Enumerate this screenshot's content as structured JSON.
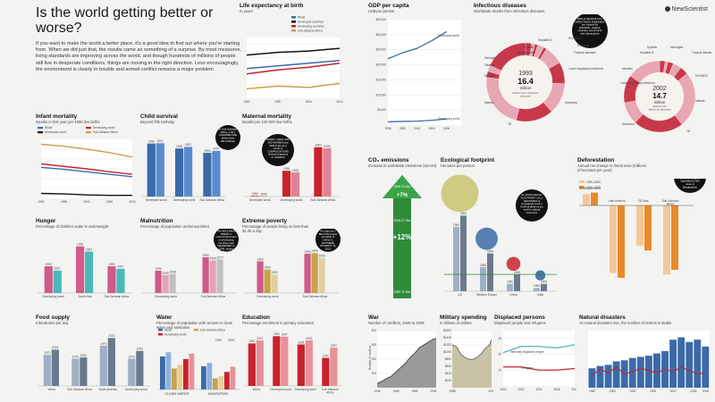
{
  "brand": "NewScientist",
  "headline": "Is the world getting better or worse?",
  "intro": "If you want to make the world a better place, it's a good idea to find out where you're starting from. When we did just that, the results came as something of a surprise. By most measures, living standards are improving across the world, and though hundreds of millions of people still live in desperate conditions, things are moving in the right direction. Less encouragingly, the environment is clearly in trouble and armed conflict remains a major problem",
  "colors": {
    "world": "#3b6aa8",
    "developed": "#111111",
    "developing": "#c8222e",
    "ssa": "#c8a24a",
    "teal": "#4bb8b8",
    "pink": "#d05a8a",
    "grey": "#7d7d7d",
    "green": "#2e8b3a"
  },
  "life": {
    "title": "Life expectancy at birth",
    "subtitle": "In years",
    "legend": [
      "World",
      "Developed countries",
      "Developing countries",
      "Sub-Saharan Africa"
    ],
    "chart_data": {
      "type": "line",
      "x": [
        1980,
        1990,
        2000,
        2010
      ],
      "xlim": [
        1980,
        2010
      ],
      "ylim": [
        40,
        85
      ],
      "series": [
        {
          "name": "World",
          "values": [
            62,
            64,
            66,
            68
          ]
        },
        {
          "name": "Developed countries",
          "values": [
            72,
            74,
            75,
            77
          ]
        },
        {
          "name": "Developing countries",
          "values": [
            58,
            61,
            63,
            66
          ]
        },
        {
          "name": "Sub-Saharan Africa",
          "values": [
            47,
            49,
            48,
            51
          ]
        }
      ]
    }
  },
  "gdp": {
    "title": "GDP per capita",
    "subtitle": "US$ per person",
    "label_developed": "Developed world",
    "label_developing": "Developing world",
    "chart_data": {
      "type": "line",
      "x": [
        1998,
        2000,
        2002,
        2004,
        2006
      ],
      "xlim": [
        1998,
        2008
      ],
      "ylim": [
        0,
        35000
      ],
      "yticks": [
        5000,
        10000,
        15000,
        20000,
        25000,
        30000,
        35000
      ],
      "series": [
        {
          "name": "Developed world",
          "values": [
            22000,
            24000,
            25500,
            28000,
            31000
          ]
        },
        {
          "name": "Developing world",
          "values": [
            1100,
            1200,
            1300,
            1600,
            2000
          ]
        }
      ]
    }
  },
  "infectious": {
    "title": "Infectious diseases",
    "subtitle": "Worldwide deaths from infectious diseases",
    "note": "80% of DEATHS from INFECTIOUS DISEASES are caused by HIV/AIDS, malaria, measles, pneumonia and tuberculosis",
    "y1993": {
      "year": "1993",
      "value": "16.4",
      "unit": "million",
      "desc": "deaths from infectious diseases"
    },
    "y2002": {
      "year": "2002",
      "value": "14.7",
      "unit": "million",
      "desc": "deaths from infectious diseases"
    },
    "labels_1993": [
      "Hepatitis B",
      "Syphilis",
      "Leishmaniasis",
      "Meningitis",
      "Tetanus",
      "Measles",
      "Malaria",
      "TB",
      "Diarrhoea",
      "Lower respiratory infections",
      "Tropical diseases",
      "Pertussis",
      "HIV/AIDS"
    ],
    "labels_2002": [
      "Hepatitis B",
      "Syphilis",
      "Meningitis",
      "Tropical diseases",
      "Measles",
      "Lower respiratory infections",
      "HIV/AIDS",
      "Malaria",
      "TB",
      "Diarrhoea"
    ]
  },
  "infant": {
    "title": "Infant mortality",
    "subtitle": "Deaths in first year per 1000 live births",
    "legend": [
      "World",
      "Developing world",
      "Developed world",
      "Sub-Saharan Africa"
    ],
    "chart_data": {
      "type": "line",
      "x": [
        1990,
        1995,
        2000,
        2005,
        2010
      ],
      "xlim": [
        1990,
        2010
      ],
      "ylim": [
        0,
        120
      ],
      "series": [
        {
          "name": "World",
          "values": [
            63,
            59,
            54,
            49,
            44
          ]
        },
        {
          "name": "Developing world",
          "values": [
            70,
            65,
            60,
            54,
            49
          ]
        },
        {
          "name": "Developed world",
          "values": [
            10,
            9,
            7,
            6,
            6
          ]
        },
        {
          "name": "Sub-Saharan Africa",
          "values": [
            110,
            106,
            100,
            93,
            84
          ]
        }
      ]
    }
  },
  "child": {
    "title": "Child survival",
    "subtitle": "Beyond fifth birthday",
    "callout": "In Sub-Saharan Africa, 1 IN 7 CHILDREN DIE before their fifth birthday",
    "cats": [
      "Developed world",
      "Developing world",
      "Sub-Saharan Africa"
    ],
    "years": [
      "1990",
      "2007"
    ],
    "chart_data": {
      "type": "bar",
      "categories": [
        "Developed world",
        "Developing world",
        "Sub-Saharan Africa"
      ],
      "ylim": [
        0,
        100
      ],
      "series": [
        {
          "name": "1990",
          "values": [
            98.8,
            89.7,
            81.6
          ]
        },
        {
          "name": "2007",
          "values": [
            99.4,
            92.6,
            85.1
          ]
        }
      ]
    }
  },
  "maternal": {
    "title": "Maternal mortality",
    "subtitle": "Deaths per 100 000 live births",
    "callout": "EVERY YEAR, 536 000 WOMEN and GIRLS die as a result of COMPLICATIONS during pregnancy or childbirth",
    "cats": [
      "Developed world",
      "Developing world",
      "Sub-Saharan Africa"
    ],
    "years": [
      "1990",
      "2005"
    ],
    "chart_data": {
      "type": "bar",
      "categories": [
        "Developed world",
        "Developing world",
        "Sub-Saharan Africa"
      ],
      "ylim": [
        0,
        1000
      ],
      "series": [
        {
          "name": "1990",
          "values": [
            11,
            480,
            920
          ]
        },
        {
          "name": "2005",
          "values": [
            9,
            450,
            900
          ]
        }
      ]
    }
  },
  "hunger": {
    "title": "Hunger",
    "subtitle": "Percentage of children under 5 underweight",
    "cats": [
      "Developing world",
      "South Asia",
      "Sub-Saharan Africa"
    ],
    "years": [
      "1990",
      "2007"
    ],
    "chart_data": {
      "type": "bar",
      "categories": [
        "Developing world",
        "South Asia",
        "Sub-Saharan Africa"
      ],
      "ylim": [
        0,
        60
      ],
      "series": [
        {
          "name": "1990",
          "values": [
            31,
            54,
            31
          ]
        },
        {
          "name": "2007",
          "values": [
            26,
            48,
            28
          ]
        }
      ]
    }
  },
  "malnutrition": {
    "title": "Malnutrition",
    "subtitle": "Percentage of population undernourished",
    "callout": "The DECLINING TREND in undernourishment in developing countries was REVERSED in 2008, largely due to escalating food prices",
    "cats": [
      "Developing world",
      "Sub-Saharan Africa"
    ],
    "years": [
      "1990",
      "2005",
      "2008"
    ],
    "chart_data": {
      "type": "bar",
      "categories": [
        "Developing world",
        "Sub-Saharan Africa"
      ],
      "ylim": [
        0,
        40
      ],
      "series": [
        {
          "name": "1990",
          "values": [
            20,
            32
          ]
        },
        {
          "name": "2005",
          "values": [
            16,
            29
          ]
        },
        {
          "name": "2008",
          "values": [
            17,
            30
          ]
        }
      ]
    }
  },
  "poverty": {
    "title": "Extreme poverty",
    "subtitle": "Percentage of people living on less than $1.25 a day",
    "callout": "As many as 1 BILLION people are likely to still be in EXTREME POVERTY by 2015",
    "cats": [
      "Developing world",
      "Sub-Saharan Africa"
    ],
    "years": [
      "1990",
      "1999",
      "2005"
    ],
    "chart_data": {
      "type": "bar",
      "categories": [
        "Developing world",
        "Sub-Saharan Africa"
      ],
      "ylim": [
        0,
        70
      ],
      "series": [
        {
          "name": "1990",
          "values": [
            46,
            57
          ]
        },
        {
          "name": "1999",
          "values": [
            34,
            58
          ]
        },
        {
          "name": "2005",
          "values": [
            27,
            51
          ]
        }
      ]
    }
  },
  "food": {
    "title": "Food supply",
    "subtitle": "Kilocalories per day",
    "cats": [
      "World",
      "Sub-Saharan Africa",
      "North America",
      "Developing world"
    ],
    "years": [
      "1970",
      "2002"
    ],
    "chart_data": {
      "type": "bar",
      "categories": [
        "World",
        "Sub-Saharan Africa",
        "North America",
        "Developing world"
      ],
      "ylim": [
        0,
        4000
      ],
      "series": [
        {
          "name": "1970",
          "values": [
            2400,
            2100,
            3100,
            2100
          ]
        },
        {
          "name": "2002",
          "values": [
            2800,
            2200,
            3700,
            2700
          ]
        }
      ]
    }
  },
  "water": {
    "title": "Water",
    "subtitle": "Percentage of population with access to clean water and sanitation",
    "legend": [
      "World",
      "Sub-Saharan Africa",
      "Developing world"
    ],
    "groups": [
      "CLEAN WATER",
      "SANITATION"
    ],
    "years": [
      "1990",
      "2006"
    ],
    "chart_data": {
      "type": "bar",
      "categories": [
        "CLEAN WATER",
        "SANITATION"
      ],
      "ylim": [
        0,
        100
      ],
      "series": [
        {
          "name": "World 1990",
          "values": [
            77,
            54
          ]
        },
        {
          "name": "World 2006",
          "values": [
            87,
            62
          ]
        },
        {
          "name": "Sub-Saharan Africa 1990",
          "values": [
            49,
            26
          ]
        },
        {
          "name": "Sub-Saharan Africa 2006",
          "values": [
            58,
            31
          ]
        },
        {
          "name": "Developing world 1990",
          "values": [
            71,
            41
          ]
        },
        {
          "name": "Developing world 2006",
          "values": [
            84,
            53
          ]
        }
      ]
    }
  },
  "education": {
    "title": "Education",
    "subtitle": "Percentage enrolment in primary education",
    "cats": [
      "World",
      "Developed world",
      "Developing world",
      "Sub-Saharan Africa"
    ],
    "years": [
      "1991",
      "2007"
    ],
    "chart_data": {
      "type": "bar",
      "categories": [
        "World",
        "Developed world",
        "Developing world",
        "Sub-Saharan Africa"
      ],
      "ylim": [
        0,
        100
      ],
      "series": [
        {
          "name": "1991",
          "values": [
            82,
            96,
            80,
            54
          ]
        },
        {
          "name": "2007",
          "values": [
            88,
            95,
            88,
            74
          ]
        }
      ]
    }
  },
  "co2": {
    "title": "CO₂ emissions",
    "subtitle": "Increase in worldwide emissions (tonnes)",
    "pct_a": "+7%",
    "pct_b": "+12%",
    "y_top_a": "2006 29.6bn",
    "y_mid": "2005 27.3bn",
    "y_bot": "1990 21.5bn"
  },
  "footprint": {
    "title": "Ecological footprint",
    "subtitle": "Hectares per person",
    "callout": "An ECOLOGICAL FOOTPRINT of 2.1 HECTARES is considered to be a FAIR SHARE of the world's natural resources",
    "cats": [
      "US",
      "Western Europe",
      "China",
      "India"
    ],
    "years": [
      "1960",
      "2005"
    ],
    "chart_data": {
      "type": "bar",
      "categories": [
        "US",
        "Western Europe",
        "China",
        "India"
      ],
      "ylim": [
        0,
        10
      ],
      "series": [
        {
          "name": "1960",
          "values": [
            8.0,
            3.0,
            0.9,
            0.4
          ]
        },
        {
          "name": "2005",
          "values": [
            9.4,
            4.7,
            2.1,
            0.9
          ]
        }
      ]
    }
  },
  "deforestation": {
    "title": "Deforestation",
    "subtitle": "Annual net change in forest area (millions of hectares per year)",
    "callout": "DEFORESTATION continues at the RATE of about 13 MILLION HECTARES per year (roughly equivalent to the area of Bangladesh)",
    "periods": [
      "1990–2000",
      "2000–2005"
    ],
    "cats": [
      "Developed world",
      "Latin America",
      "SE Asia",
      "Sub-Saharan Africa"
    ],
    "chart_data": {
      "type": "bar",
      "categories": [
        "Developed world",
        "Latin America",
        "SE Asia",
        "Sub-Saharan Africa"
      ],
      "ylim": [
        -5,
        1
      ],
      "series": [
        {
          "name": "1990–2000",
          "values": [
            0.7,
            -4.2,
            -2.5,
            -4.3
          ]
        },
        {
          "name": "2000–2005",
          "values": [
            0.8,
            -4.5,
            -2.8,
            -4.0
          ]
        }
      ]
    }
  },
  "war": {
    "title": "War",
    "subtitle": "Number of conflicts, 1945 to 2008",
    "ylabel": "Number of conflicts",
    "chart_data": {
      "type": "area",
      "x": [
        1945,
        1950,
        1955,
        1960,
        1965,
        1970,
        1975,
        1980,
        1985,
        1990,
        1995,
        2000,
        2005,
        2008
      ],
      "xlim": [
        1945,
        2008
      ],
      "ylim": [
        0,
        400
      ],
      "series": [
        {
          "name": "Conflicts",
          "values": [
            30,
            45,
            65,
            80,
            110,
            140,
            170,
            210,
            240,
            280,
            300,
            320,
            340,
            345
          ]
        }
      ]
    }
  },
  "military": {
    "title": "Military spending",
    "subtitle": "In billions of dollars",
    "chart_data": {
      "type": "area",
      "x": [
        1988,
        1990,
        1992,
        1994,
        1996,
        1998,
        2000,
        2002,
        2004,
        2006,
        2007
      ],
      "xlim": [
        1988,
        2007
      ],
      "ylim": [
        0,
        1600
      ],
      "yticks": [
        200,
        400,
        600,
        800,
        1000,
        1200,
        1400,
        1600
      ],
      "series": [
        {
          "name": "Military spending",
          "values": [
            1200,
            1150,
            950,
            850,
            800,
            790,
            850,
            950,
            1100,
            1200,
            1340
          ]
        }
      ]
    }
  },
  "displaced": {
    "title": "Displaced persons",
    "subtitle": "Displaced people and refugees",
    "lbl_idp": "Internally displaced people",
    "lbl_ref": "Refugees",
    "chart_data": {
      "type": "line",
      "x": [
        2000,
        2002,
        2004,
        2006,
        2008
      ],
      "xlim": [
        2000,
        2008
      ],
      "ylim": [
        0,
        35
      ],
      "series": [
        {
          "name": "Internally displaced people",
          "values": [
            21,
            25,
            25,
            24,
            26
          ]
        },
        {
          "name": "Refugees",
          "values": [
            12,
            12,
            10,
            10,
            11
          ]
        }
      ]
    }
  },
  "disasters": {
    "title": "Natural disasters",
    "subtitle": "As natural disasters rise, the number of victims is stable",
    "chart_data": {
      "type": "bar",
      "x": [
        1980,
        1982,
        1984,
        1986,
        1988,
        1990,
        1992,
        1994,
        1996,
        1998,
        2000,
        2002,
        2004,
        2006,
        2008
      ],
      "ylim": [
        0,
        500
      ],
      "series": [
        {
          "name": "Disasters",
          "values": [
            170,
            190,
            200,
            230,
            240,
            260,
            270,
            280,
            300,
            320,
            420,
            440,
            400,
            420,
            360
          ]
        },
        {
          "name": "Victims (millions)",
          "values": [
            110,
            160,
            130,
            180,
            120,
            140,
            170,
            150,
            130,
            160,
            140,
            180,
            150,
            120,
            130
          ]
        }
      ]
    }
  }
}
